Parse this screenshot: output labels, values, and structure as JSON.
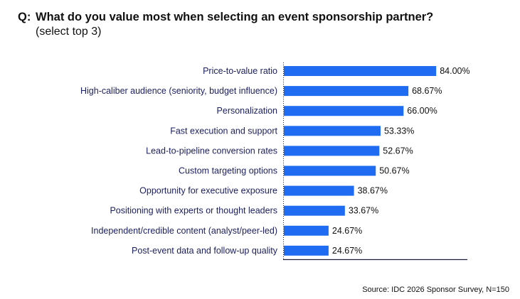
{
  "question": {
    "prefix": "Q:",
    "text": "What do you value most when selecting an event sponsorship partner?",
    "subtext": "(select top 3)"
  },
  "source": "Source: IDC 2026 Sponsor Survey, N=150",
  "colors": {
    "bar": "#1f6bf2",
    "label": "#1b1f5e",
    "axis": "#1b1f3a"
  },
  "chart_data": {
    "type": "bar",
    "orientation": "horizontal",
    "title": "What do you value most when selecting an event sponsorship partner?",
    "subtitle": "(select top 3)",
    "xlabel": "",
    "ylabel": "",
    "xlim": [
      0,
      100
    ],
    "grid": false,
    "legend": "none",
    "categories": [
      "Price-to-value ratio",
      "High-caliber audience (seniority, budget influence)",
      "Personalization",
      "Fast execution and support",
      "Lead-to-pipeline conversion rates",
      "Custom targeting options",
      "Opportunity for executive exposure",
      "Positioning with experts or thought leaders",
      "Independent/credible content (analyst/peer-led)",
      "Post-event data and follow-up quality"
    ],
    "values": [
      84.0,
      68.67,
      66.0,
      53.33,
      52.67,
      50.67,
      38.67,
      33.67,
      24.67,
      24.67
    ],
    "value_labels": [
      "84.00%",
      "68.67%",
      "66.00%",
      "53.33%",
      "52.67%",
      "50.67%",
      "38.67%",
      "33.67%",
      "24.67%",
      "24.67%"
    ]
  }
}
